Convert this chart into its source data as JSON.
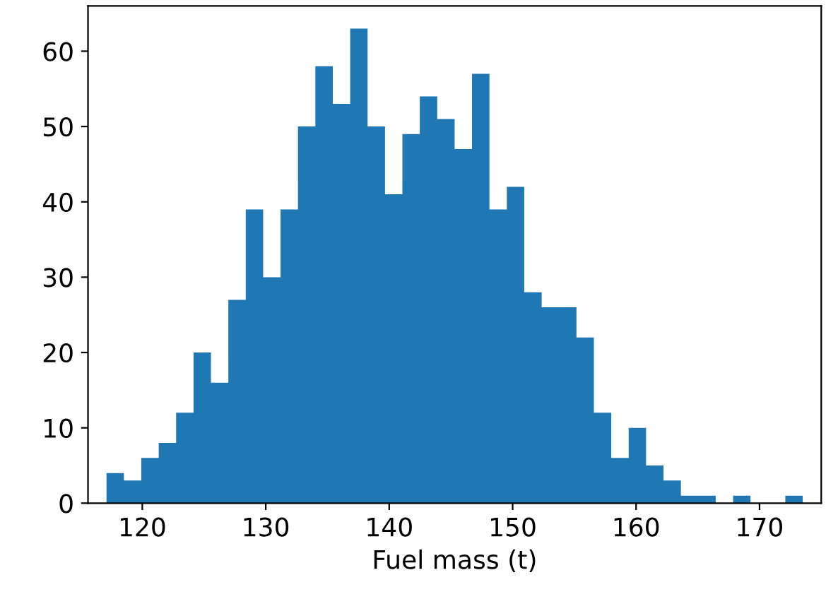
{
  "chart_data": {
    "type": "histogram",
    "xlabel": "Fuel mass (t)",
    "color": "#1f77b4",
    "bins": [
      117.1,
      118.51,
      119.92,
      121.33,
      122.74,
      124.15,
      125.56,
      126.97,
      128.38,
      129.79,
      131.2,
      132.61,
      134.02,
      135.43,
      136.84,
      138.25,
      139.66,
      141.07,
      142.48,
      143.89,
      145.3,
      146.71,
      148.12,
      149.53,
      150.94,
      152.35,
      153.76,
      155.17,
      156.58,
      157.99,
      159.4,
      160.81,
      162.22,
      163.63,
      165.04,
      166.45,
      167.86,
      169.27,
      170.68,
      172.09,
      173.5
    ],
    "values": [
      4,
      3,
      6,
      8,
      12,
      20,
      16,
      27,
      39,
      30,
      39,
      50,
      58,
      53,
      63,
      50,
      41,
      49,
      54,
      51,
      47,
      57,
      39,
      42,
      28,
      26,
      26,
      22,
      12,
      6,
      10,
      5,
      3,
      1,
      1,
      0,
      1,
      0,
      0,
      1
    ],
    "xlim": [
      115.6,
      175.0
    ],
    "ylim": [
      0,
      66
    ],
    "xticks": [
      120,
      130,
      140,
      150,
      160,
      170
    ],
    "yticks": [
      0,
      10,
      20,
      30,
      40,
      50,
      60
    ],
    "grid": false
  }
}
